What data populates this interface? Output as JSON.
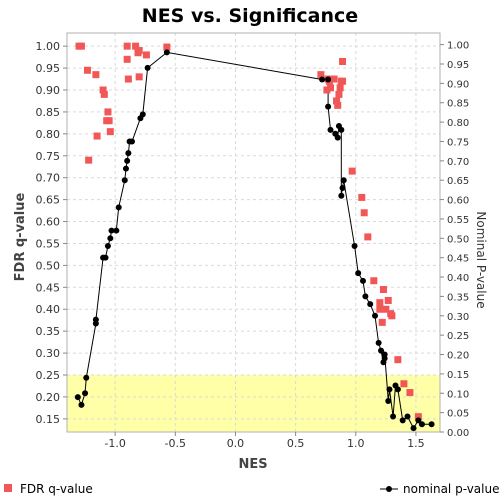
{
  "chart_data": {
    "type": "scatter",
    "title": "NES vs. Significance",
    "xlabel": "NES",
    "ylabel_left": "FDR q-value",
    "ylabel_right": "Nominal P-value",
    "x_range": [
      -1.4,
      1.7
    ],
    "y_left_range": [
      0.12,
      1.03
    ],
    "y_right_range": [
      0.0,
      1.03
    ],
    "x_ticks": [
      "-1.0",
      "-0.5",
      "0.0",
      "0.5",
      "1.0",
      "1.5"
    ],
    "y_left_ticks": [
      "0.15",
      "0.20",
      "0.25",
      "0.30",
      "0.35",
      "0.40",
      "0.45",
      "0.50",
      "0.55",
      "0.60",
      "0.65",
      "0.70",
      "0.75",
      "0.80",
      "0.85",
      "0.90",
      "0.95",
      "1.00"
    ],
    "y_right_ticks": [
      "0.00",
      "0.05",
      "0.10",
      "0.15",
      "0.20",
      "0.25",
      "0.30",
      "0.35",
      "0.40",
      "0.45",
      "0.50",
      "0.55",
      "0.60",
      "0.65",
      "0.70",
      "0.75",
      "0.80",
      "0.85",
      "0.90",
      "0.95",
      "1.00"
    ],
    "highlight_fdr_below": 0.25,
    "highlight_color": "#ffffa8",
    "plot_background": "#ffffff",
    "grid": true,
    "series": [
      {
        "name": "FDR q-value",
        "kind": "scatter-square",
        "axis": "left",
        "color": "#f25757",
        "x": [
          -1.3,
          -1.28,
          -1.23,
          -1.22,
          -1.16,
          -1.15,
          -1.1,
          -1.09,
          -1.07,
          -1.06,
          -1.05,
          -1.04,
          -0.9,
          -0.9,
          -0.89,
          -0.83,
          -0.81,
          -0.8,
          -0.8,
          -0.74,
          -0.57,
          0.71,
          0.76,
          0.77,
          0.78,
          0.79,
          0.8,
          0.82,
          0.84,
          0.85,
          0.86,
          0.87,
          0.88,
          0.89,
          0.89,
          0.97,
          1.05,
          1.07,
          1.1,
          1.15,
          1.2,
          1.2,
          1.22,
          1.23,
          1.25,
          1.27,
          1.29,
          1.3,
          1.35,
          1.4,
          1.45,
          1.52
        ],
        "y": [
          1.0,
          1.0,
          0.945,
          0.74,
          0.935,
          0.795,
          0.9,
          0.89,
          0.83,
          0.85,
          0.83,
          0.805,
          1.0,
          0.97,
          0.925,
          1.0,
          0.985,
          0.93,
          0.99,
          0.98,
          0.998,
          0.935,
          0.9,
          0.925,
          0.92,
          0.905,
          0.925,
          0.925,
          0.875,
          0.865,
          0.89,
          0.905,
          0.92,
          0.92,
          0.965,
          0.715,
          0.655,
          0.62,
          0.565,
          0.465,
          0.415,
          0.4,
          0.37,
          0.445,
          0.4,
          0.42,
          0.39,
          0.385,
          0.285,
          0.23,
          0.21,
          0.155
        ]
      },
      {
        "name": "nominal p-value",
        "kind": "line-dot",
        "axis": "right",
        "color": "#000000",
        "x": [
          -1.31,
          -1.28,
          -1.25,
          -1.24,
          -1.16,
          -1.16,
          -1.1,
          -1.08,
          -1.06,
          -1.04,
          -1.03,
          -0.99,
          -0.97,
          -0.92,
          -0.91,
          -0.9,
          -0.89,
          -0.88,
          -0.86,
          -0.79,
          -0.77,
          -0.73,
          -0.57,
          0.72,
          0.77,
          0.77,
          0.79,
          0.83,
          0.85,
          0.86,
          0.88,
          0.88,
          0.89,
          0.9,
          0.99,
          1.02,
          1.06,
          1.08,
          1.12,
          1.16,
          1.19,
          1.21,
          1.23,
          1.24,
          1.24,
          1.27,
          1.28,
          1.31,
          1.33,
          1.35,
          1.39,
          1.43,
          1.48,
          1.52,
          1.55,
          1.63
        ],
        "y": [
          0.09,
          0.07,
          0.1,
          0.14,
          0.28,
          0.29,
          0.45,
          0.45,
          0.48,
          0.5,
          0.52,
          0.52,
          0.58,
          0.65,
          0.68,
          0.7,
          0.72,
          0.75,
          0.75,
          0.81,
          0.82,
          0.94,
          0.98,
          0.91,
          0.91,
          0.84,
          0.78,
          0.77,
          0.76,
          0.79,
          0.78,
          0.61,
          0.63,
          0.65,
          0.48,
          0.41,
          0.39,
          0.35,
          0.33,
          0.3,
          0.23,
          0.21,
          0.18,
          0.19,
          0.2,
          0.08,
          0.11,
          0.04,
          0.12,
          0.11,
          0.03,
          0.04,
          0.01,
          0.03,
          0.02,
          0.02
        ]
      }
    ],
    "legend": [
      {
        "label": "FDR q-value",
        "symbol": "square",
        "color": "#f25757"
      },
      {
        "label": "nominal p-value",
        "symbol": "line-dot",
        "color": "#000000"
      }
    ],
    "legend_placement": "bottom"
  }
}
